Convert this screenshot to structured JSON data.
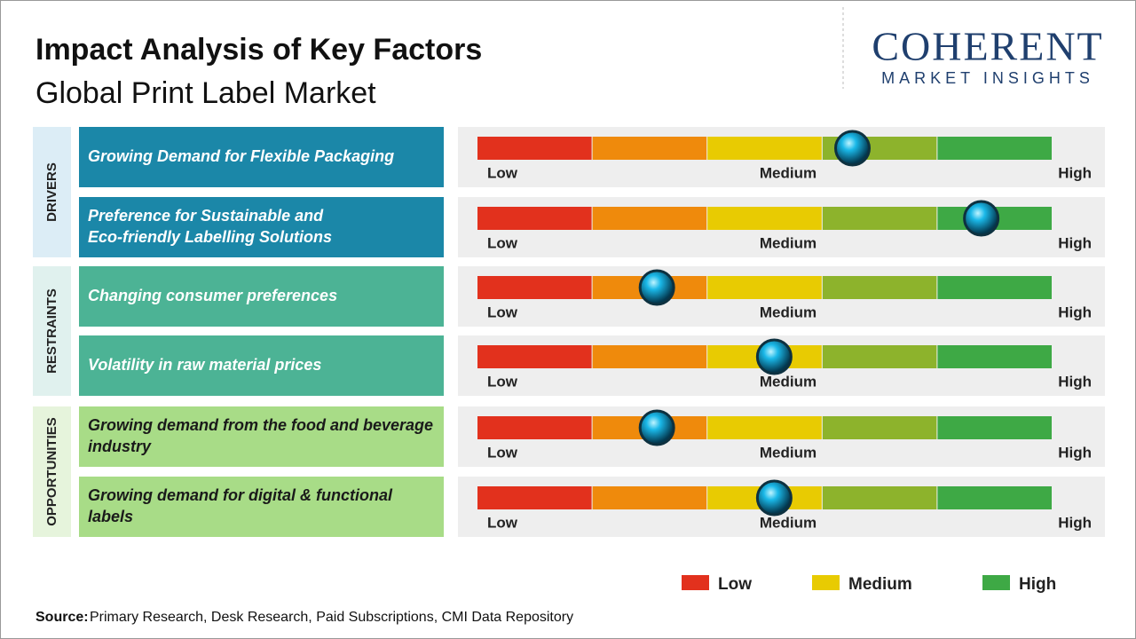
{
  "header": {
    "title": "Impact Analysis of Key Factors",
    "subtitle": "Global Print Label Market"
  },
  "logo": {
    "brand": "COHERENT",
    "tagline": "MARKET INSIGHTS"
  },
  "impact_range": [
    0,
    5
  ],
  "segment_colors": [
    "#e2311d",
    "#ef8a0c",
    "#e8cb02",
    "#8db32c",
    "#3ea945"
  ],
  "scale_labels": [
    "Low",
    "Medium",
    "High"
  ],
  "groups": [
    {
      "label": "DRIVERS",
      "color": "#1b87a8",
      "panel": "#dcedf6",
      "text_color": "#ffffff",
      "factors": [
        {
          "text": "Growing Demand for Flexible Packaging",
          "impact": 3.26
        },
        {
          "text": "Preference for Sustainable and Eco-friendly Labelling Solutions",
          "impact": 4.38
        }
      ]
    },
    {
      "label": "RESTRAINTS",
      "color": "#4cb395",
      "panel": "#e0f1ee",
      "text_color": "#ffffff",
      "factors": [
        {
          "text": "Changing consumer preferences",
          "impact": 1.56
        },
        {
          "text": "Volatility in raw material prices",
          "impact": 2.58
        }
      ]
    },
    {
      "label": "OPPORTUNITIES",
      "color": "#a8dc87",
      "panel": "#e6f4dc",
      "text_color": "#1a1a1a",
      "factors": [
        {
          "text": "Growing demand from the food and beverage industry",
          "impact": 1.56
        },
        {
          "text": "Growing demand for digital & functional labels",
          "impact": 2.58
        }
      ]
    }
  ],
  "legend": [
    {
      "label": "Low",
      "color": "#e2311d"
    },
    {
      "label": "Medium",
      "color": "#e8cb02"
    },
    {
      "label": "High",
      "color": "#3ea945"
    }
  ],
  "source": {
    "label": "Source:",
    "text": "Primary Research, Desk Research, Paid Subscriptions, CMI Data Repository"
  }
}
